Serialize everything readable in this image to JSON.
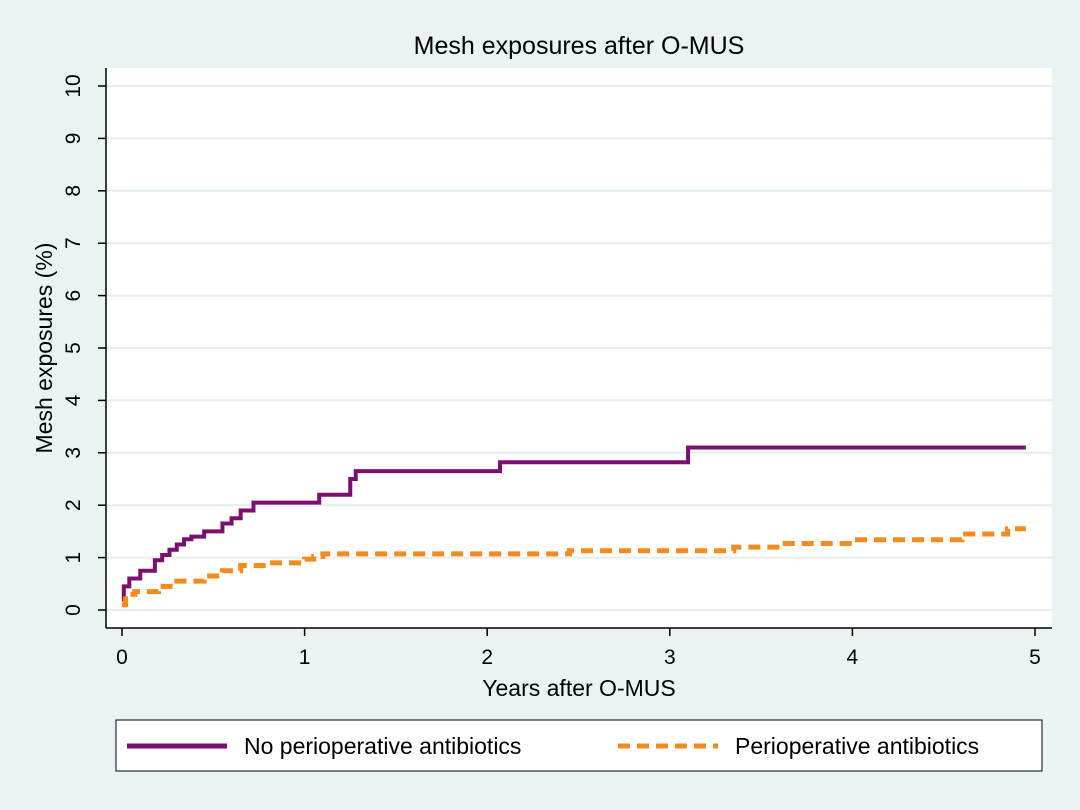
{
  "chart_data": {
    "type": "line",
    "title": "Mesh exposures after O-MUS",
    "xlabel": "Years after O-MUS",
    "ylabel": "Mesh exposures (%)",
    "xlim": [
      0,
      5
    ],
    "ylim": [
      0,
      10
    ],
    "xticks": [
      "0",
      "1",
      "2",
      "3",
      "4",
      "5"
    ],
    "yticks": [
      "0",
      "1",
      "2",
      "3",
      "4",
      "5",
      "6",
      "7",
      "8",
      "9",
      "10"
    ],
    "grid": "horizontal",
    "legend_position": "bottom",
    "series": [
      {
        "name": "No perioperative antibiotics",
        "color": "#7a0f6f",
        "style": "solid",
        "step": true,
        "x": [
          0,
          0.01,
          0.04,
          0.1,
          0.18,
          0.22,
          0.26,
          0.3,
          0.34,
          0.38,
          0.45,
          0.55,
          0.6,
          0.65,
          0.72,
          1.08,
          1.25,
          1.28,
          2.07,
          3.1,
          4.95
        ],
        "y": [
          0.2,
          0.45,
          0.6,
          0.75,
          0.95,
          1.05,
          1.15,
          1.25,
          1.35,
          1.4,
          1.5,
          1.65,
          1.75,
          1.9,
          2.05,
          2.2,
          2.5,
          2.65,
          2.82,
          3.1,
          3.1
        ]
      },
      {
        "name": "Perioperative antibiotics",
        "color": "#f58a1f",
        "style": "dashed",
        "step": true,
        "x": [
          0,
          0.02,
          0.07,
          0.2,
          0.3,
          0.45,
          0.55,
          0.65,
          0.8,
          1.0,
          1.05,
          1.1,
          2.45,
          3.35,
          3.6,
          4.0,
          4.6,
          4.85,
          4.95
        ],
        "y": [
          0.1,
          0.3,
          0.35,
          0.45,
          0.55,
          0.65,
          0.75,
          0.85,
          0.9,
          0.97,
          1.02,
          1.07,
          1.13,
          1.2,
          1.27,
          1.34,
          1.45,
          1.55,
          1.55
        ]
      }
    ]
  }
}
